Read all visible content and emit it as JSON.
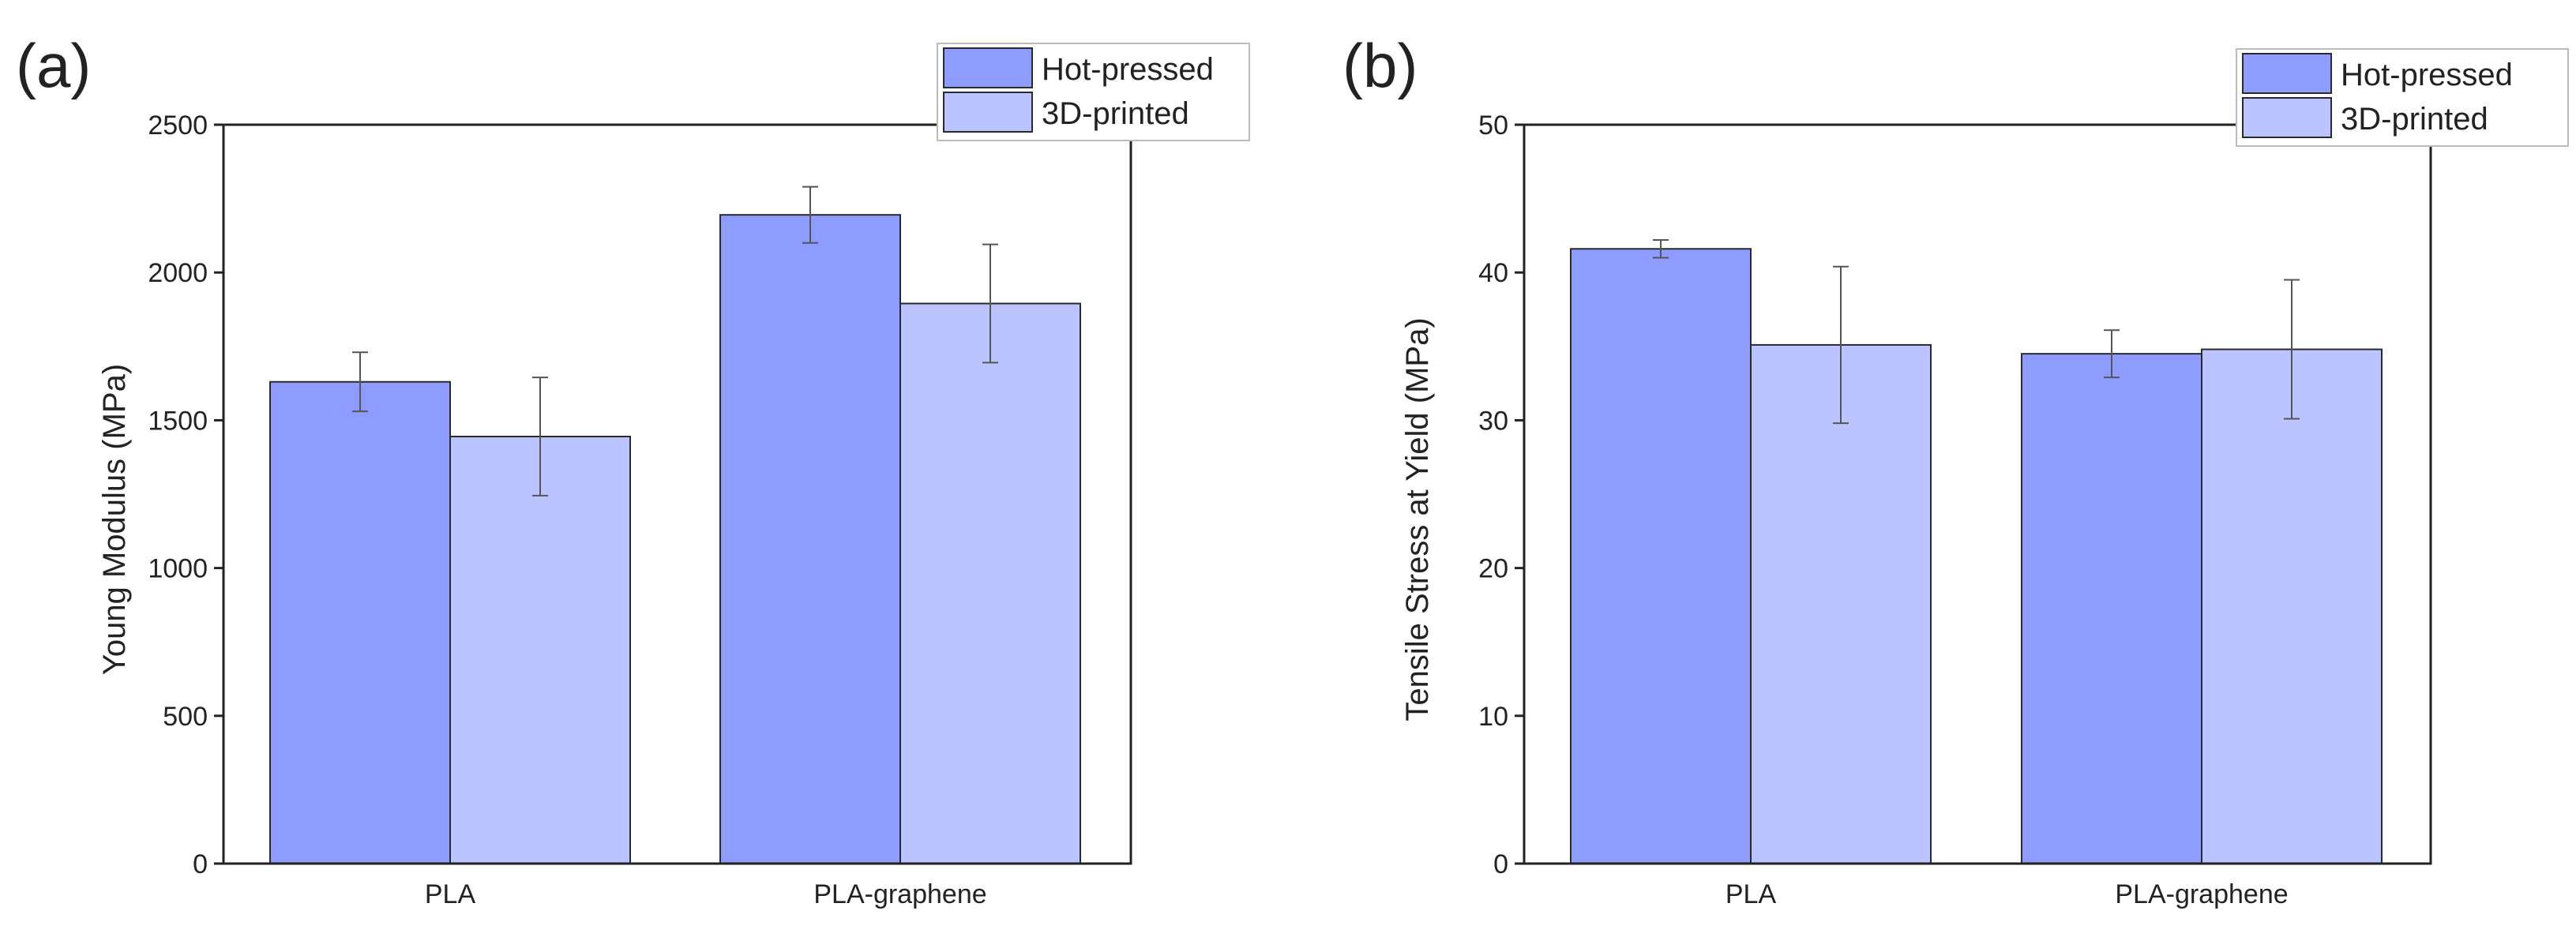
{
  "chart_data": [
    {
      "panel_label": "(a)",
      "type": "bar",
      "categories": [
        "PLA",
        "PLA-graphene"
      ],
      "series": [
        {
          "name": "Hot-pressed",
          "values": [
            1630,
            2195
          ],
          "errors": [
            100,
            95
          ]
        },
        {
          "name": "3D-printed",
          "values": [
            1445,
            1895
          ],
          "errors": [
            200,
            200
          ]
        }
      ],
      "ylabel": "Young Modulus (MPa)",
      "ylim": [
        0,
        2500
      ],
      "yticks": [
        0,
        500,
        1000,
        1500,
        2000,
        2500
      ],
      "legend_position": "top-right",
      "grid": false
    },
    {
      "panel_label": "(b)",
      "type": "bar",
      "categories": [
        "PLA",
        "PLA-graphene"
      ],
      "series": [
        {
          "name": "Hot-pressed",
          "values": [
            41.6,
            34.5
          ],
          "errors": [
            0.6,
            1.6
          ]
        },
        {
          "name": "3D-printed",
          "values": [
            35.1,
            34.8
          ],
          "errors": [
            5.3,
            4.7
          ]
        }
      ],
      "ylabel": "Tensile Stress at Yield (MPa)",
      "ylim": [
        0,
        50
      ],
      "yticks": [
        0,
        10,
        20,
        30,
        40,
        50
      ],
      "legend_position": "top-right",
      "grid": false
    }
  ],
  "colors": {
    "hot_pressed": "#8f9cff",
    "printed_3d": "#bcc4ff",
    "axis": "#222222",
    "error_bar": "#555555"
  }
}
